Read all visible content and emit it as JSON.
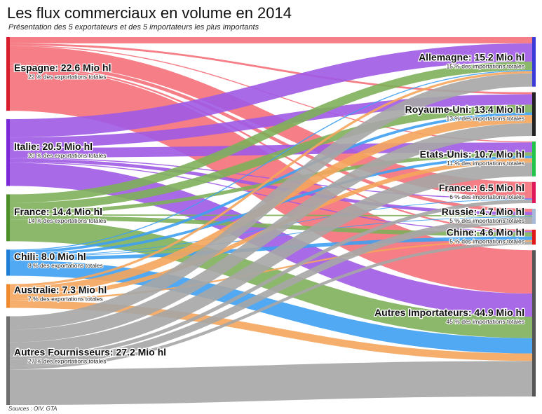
{
  "title": "Les flux commerciaux en volume en 2014",
  "subtitle": "Présentation des 5 exportateurs et des 5 importateurs les plus importants",
  "source": "Sources : OIV, GTA",
  "chart_data": {
    "type": "sankey",
    "unit": "Mio hl",
    "exporters": [
      {
        "name": "Espagne",
        "label": "Espagne: 22.6 Mio hl",
        "value": 22.6,
        "sub": "22 % des exportations totales",
        "color": "#f4707a",
        "bar": "#d81e2e"
      },
      {
        "name": "Italie",
        "label": "Italie: 20.5 Mio hl",
        "value": 20.5,
        "sub": "20 % des exportations totales",
        "color": "#a05ae6",
        "bar": "#7a2ad6"
      },
      {
        "name": "France",
        "label": "France: 14.4 Mio hl",
        "value": 14.4,
        "sub": "14 % des exportations totales",
        "color": "#7eb05a",
        "bar": "#4f8f2a"
      },
      {
        "name": "Chili",
        "label": "Chili: 8.0 Mio hl",
        "value": 8.0,
        "sub": "8 % des exportations totales",
        "color": "#3fa0f2",
        "bar": "#1f7ed8"
      },
      {
        "name": "Australie",
        "label": "Australie: 7.3 Mio hl",
        "value": 7.3,
        "sub": "7 % des exportations totales",
        "color": "#f5a55c",
        "bar": "#ef8a2e"
      },
      {
        "name": "Autres Fournisseurs",
        "label": "Autres Fournisseurs: 27.2 Mio hl",
        "value": 27.2,
        "sub": "27 % des exportations totales",
        "color": "#a6a6a6",
        "bar": "#6e6e6e"
      }
    ],
    "importers": [
      {
        "name": "Allemagne",
        "label": "Allemagne: 15.2 Mio hl",
        "value": 15.2,
        "sub": "15 % des importations totales",
        "bar": "#3b3bd8"
      },
      {
        "name": "Royaume-Uni",
        "label": "Royaume-Uni: 13.4 Mio hl",
        "value": 13.4,
        "sub": "13 % des importations totales",
        "bar": "#222222"
      },
      {
        "name": "Etats-Unis",
        "label": "Etats-Unis: 10.7 Mio hl",
        "value": 10.7,
        "sub": "11 % des importations totales",
        "bar": "#22c44a"
      },
      {
        "name": "France",
        "label": "France.: 6.5 Mio hl",
        "value": 6.5,
        "sub": "6 % des importations totales",
        "bar": "#e0185a"
      },
      {
        "name": "Russie",
        "label": "Russie: 4.7 Mio hl",
        "value": 4.7,
        "sub": "5 % des importations totales",
        "bar": "#a8b8d8"
      },
      {
        "name": "Chine",
        "label": "Chine: 4.6 Mio hl",
        "value": 4.6,
        "sub": "5 % des importations totales",
        "bar": "#e01818"
      },
      {
        "name": "Autres Importateurs",
        "label": "Autres Importateurs: 44.9 Mio hl",
        "value": 44.9,
        "sub": "45 % des importations totales",
        "bar": "#555555"
      }
    ],
    "flows": [
      {
        "from": "Espagne",
        "to": "Allemagne",
        "value": 1.9
      },
      {
        "from": "Espagne",
        "to": "Royaume-Uni",
        "value": 0.6
      },
      {
        "from": "Espagne",
        "to": "Etats-Unis",
        "value": 0.3
      },
      {
        "from": "Espagne",
        "to": "France",
        "value": 5.0
      },
      {
        "from": "Espagne",
        "to": "Russie",
        "value": 1.0
      },
      {
        "from": "Espagne",
        "to": "Chine",
        "value": 0.5
      },
      {
        "from": "Espagne",
        "to": "Autres Importateurs",
        "value": 13.3
      },
      {
        "from": "Italie",
        "to": "Allemagne",
        "value": 5.6
      },
      {
        "from": "Italie",
        "to": "Royaume-Uni",
        "value": 3.2
      },
      {
        "from": "Italie",
        "to": "Etats-Unis",
        "value": 3.0
      },
      {
        "from": "Italie",
        "to": "France",
        "value": 0.3
      },
      {
        "from": "Italie",
        "to": "Russie",
        "value": 1.0
      },
      {
        "from": "Italie",
        "to": "Chine",
        "value": 0.3
      },
      {
        "from": "Italie",
        "to": "Autres Importateurs",
        "value": 7.1
      },
      {
        "from": "France",
        "to": "Allemagne",
        "value": 2.6
      },
      {
        "from": "France",
        "to": "Royaume-Uni",
        "value": 2.4
      },
      {
        "from": "France",
        "to": "Etats-Unis",
        "value": 1.1
      },
      {
        "from": "France",
        "to": "Russie",
        "value": 0.4
      },
      {
        "from": "France",
        "to": "Chine",
        "value": 1.3
      },
      {
        "from": "France",
        "to": "Autres Importateurs",
        "value": 6.6
      },
      {
        "from": "Chili",
        "to": "Allemagne",
        "value": 0.3
      },
      {
        "from": "Chili",
        "to": "Royaume-Uni",
        "value": 0.8
      },
      {
        "from": "Chili",
        "to": "Etats-Unis",
        "value": 0.8
      },
      {
        "from": "Chili",
        "to": "France",
        "value": 0.1
      },
      {
        "from": "Chili",
        "to": "Russie",
        "value": 0.2
      },
      {
        "from": "Chili",
        "to": "Chine",
        "value": 1.1
      },
      {
        "from": "Chili",
        "to": "Autres Importateurs",
        "value": 4.7
      },
      {
        "from": "Australie",
        "to": "Allemagne",
        "value": 0.7
      },
      {
        "from": "Australie",
        "to": "Royaume-Uni",
        "value": 2.5
      },
      {
        "from": "Australie",
        "to": "Etats-Unis",
        "value": 1.3
      },
      {
        "from": "Australie",
        "to": "Chine",
        "value": 0.5
      },
      {
        "from": "Australie",
        "to": "Autres Importateurs",
        "value": 2.3
      },
      {
        "from": "Autres Fournisseurs",
        "to": "Allemagne",
        "value": 4.1
      },
      {
        "from": "Autres Fournisseurs",
        "to": "Royaume-Uni",
        "value": 3.9
      },
      {
        "from": "Autres Fournisseurs",
        "to": "Etats-Unis",
        "value": 4.2
      },
      {
        "from": "Autres Fournisseurs",
        "to": "France",
        "value": 1.1
      },
      {
        "from": "Autres Fournisseurs",
        "to": "Russie",
        "value": 2.1
      },
      {
        "from": "Autres Fournisseurs",
        "to": "Chine",
        "value": 0.9
      },
      {
        "from": "Autres Fournisseurs",
        "to": "Autres Importateurs",
        "value": 10.9
      }
    ]
  }
}
